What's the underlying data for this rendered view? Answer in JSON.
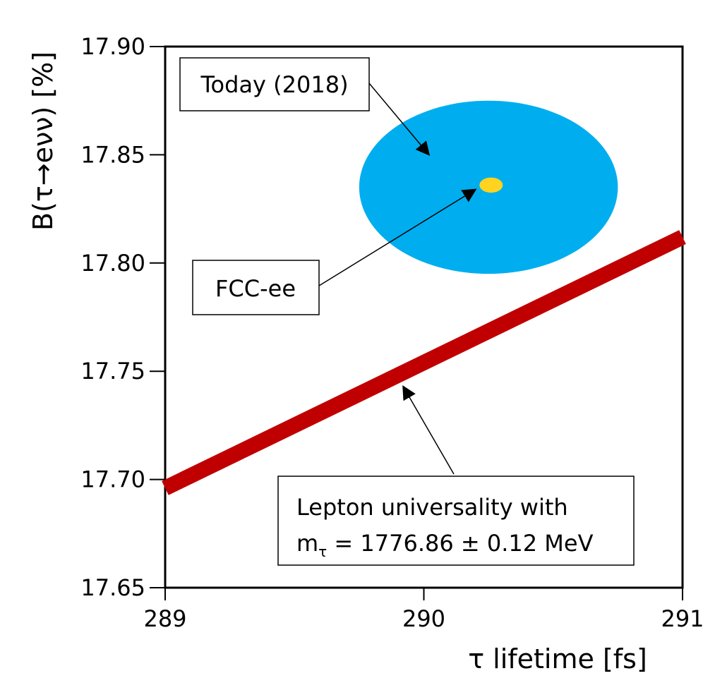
{
  "chart_data": {
    "type": "scatter",
    "xlabel": "τ lifetime [fs]",
    "ylabel": "B(τ→eνν) [%]",
    "xlim": [
      289,
      291
    ],
    "ylim": [
      17.65,
      17.9
    ],
    "x_ticks": [
      "289",
      "290",
      "291"
    ],
    "y_ticks": [
      "17.65",
      "17.70",
      "17.75",
      "17.80",
      "17.85",
      "17.90"
    ],
    "series": [
      {
        "name": "Today (2018)",
        "shape": "ellipse",
        "center": [
          290.25,
          17.835
        ],
        "half_width": [
          0.5,
          0.04
        ],
        "color": "#00AEEF"
      },
      {
        "name": "FCC-ee",
        "shape": "ellipse",
        "center": [
          290.26,
          17.836
        ],
        "half_width": [
          0.045,
          0.0035
        ],
        "color": "#FFD320"
      },
      {
        "name": "Lepton universality with",
        "name_line2": "mτ = 1776.86 ± 0.12 MeV",
        "shape": "band",
        "x": [
          289,
          291
        ],
        "y": [
          17.696,
          17.812
        ],
        "color": "#C00000"
      }
    ],
    "annotations": [
      {
        "text": "Today (2018)",
        "target": [
          290.02,
          17.85
        ]
      },
      {
        "text": "FCC-ee",
        "target": [
          290.2,
          17.834
        ]
      },
      {
        "text_line1": "Lepton universality with",
        "text_line2_main": "m",
        "text_line2_sub": "τ",
        "text_line2_rest": " = 1776.86 ± 0.12 MeV",
        "target": [
          289.92,
          17.743
        ]
      }
    ]
  }
}
